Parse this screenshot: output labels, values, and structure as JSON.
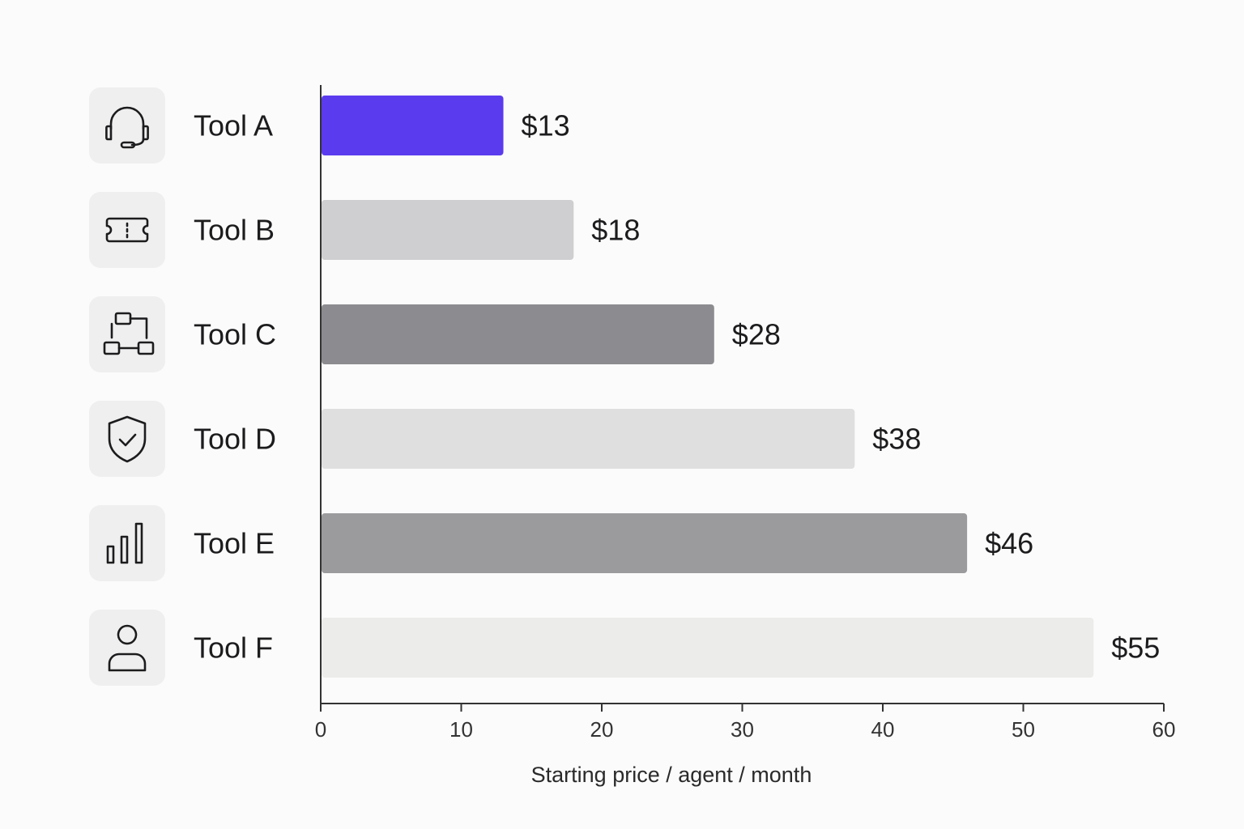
{
  "chart_data": {
    "type": "bar",
    "orientation": "horizontal",
    "categories": [
      "Tool A",
      "Tool B",
      "Tool C",
      "Tool D",
      "Tool E",
      "Tool F"
    ],
    "icons": [
      "headset-icon",
      "ticket-icon",
      "workflow-icon",
      "shield-check-icon",
      "bar-chart-icon",
      "user-icon"
    ],
    "values": [
      13,
      18,
      28,
      38,
      46,
      55
    ],
    "value_labels": [
      "$13",
      "$18",
      "$28",
      "$38",
      "$46",
      "$55"
    ],
    "bar_colors": [
      "#5b3bee",
      "#cfcfd1",
      "#8c8c90",
      "#dfdfdf",
      "#9b9b9e",
      "#ececea"
    ],
    "xlabel": "Starting price / agent / month",
    "ylabel": "",
    "title": "",
    "xlim": [
      0,
      60
    ],
    "xticks": [
      "0",
      "10",
      "20",
      "30",
      "40",
      "50",
      "60"
    ],
    "grid": false,
    "legend": "none"
  }
}
